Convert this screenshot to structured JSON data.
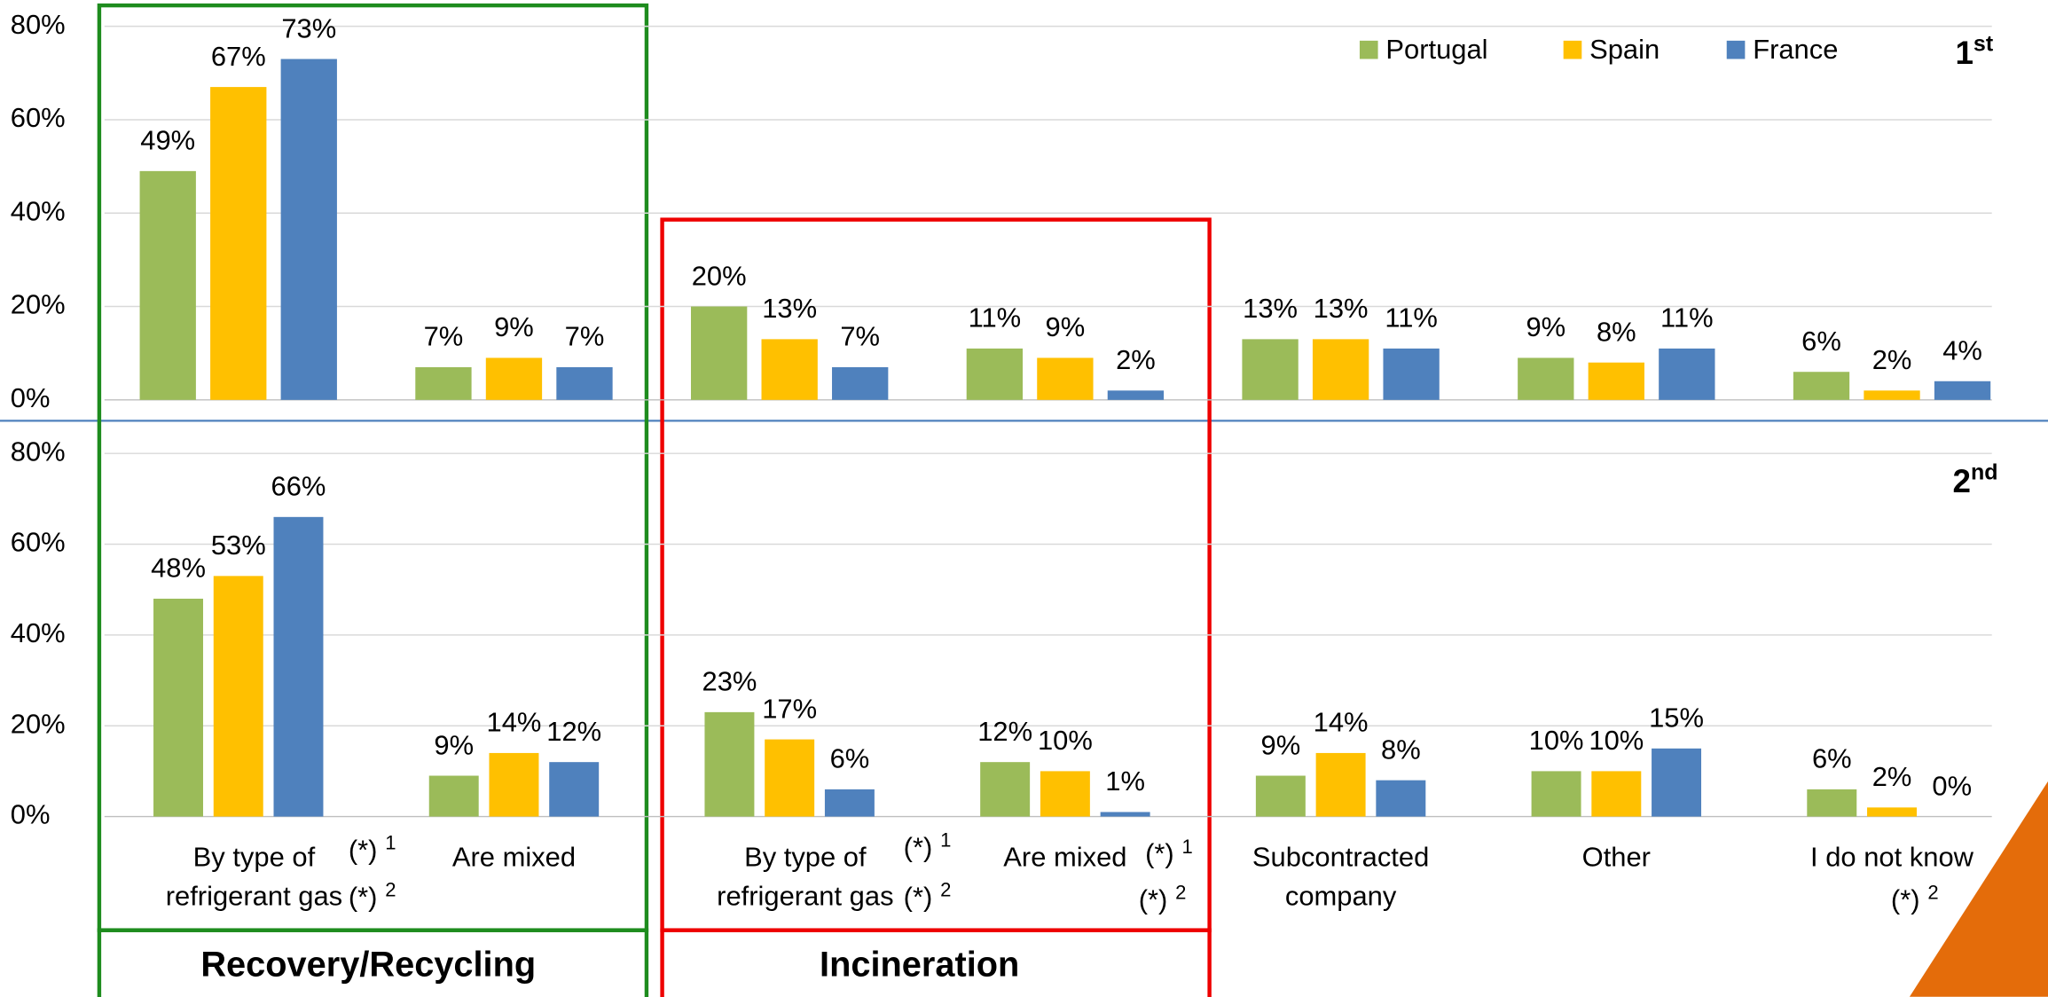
{
  "chart_data": [
    {
      "type": "bar",
      "panel_number": "1",
      "panel_suffix": "st",
      "ylim": [
        0,
        80
      ],
      "yticks": [
        {
          "value": 0,
          "label": "0%"
        },
        {
          "value": 20,
          "label": "20%"
        },
        {
          "value": 40,
          "label": "40%"
        },
        {
          "value": 60,
          "label": "60%"
        },
        {
          "value": 80,
          "label": "80%"
        }
      ],
      "grid": true,
      "legend": "top-right",
      "series": [
        {
          "name": "Portugal",
          "color": "#9bbb59",
          "values": [
            49,
            7,
            20,
            11,
            13,
            9,
            6
          ],
          "value_labels": [
            "49%",
            "7%",
            "20%",
            "11%",
            "13%",
            "9%",
            "6%"
          ]
        },
        {
          "name": "Spain",
          "color": "#ffc000",
          "values": [
            67,
            9,
            13,
            9,
            13,
            8,
            2
          ],
          "value_labels": [
            "67%",
            "9%",
            "13%",
            "9%",
            "13%",
            "8%",
            "2%"
          ]
        },
        {
          "name": "France",
          "color": "#4f81bd",
          "values": [
            73,
            7,
            7,
            2,
            11,
            11,
            4
          ],
          "value_labels": [
            "73%",
            "7%",
            "7%",
            "2%",
            "11%",
            "11%",
            "4%"
          ]
        }
      ]
    },
    {
      "type": "bar",
      "panel_number": "2",
      "panel_suffix": "nd",
      "categories": [
        "By type of refrigerant gas",
        "Are mixed",
        "By type of refrigerant gas",
        "Are mixed",
        "Subcontracted company",
        "Other",
        "I do not know"
      ],
      "ylim": [
        0,
        80
      ],
      "yticks": [
        {
          "value": 0,
          "label": "0%"
        },
        {
          "value": 20,
          "label": "20%"
        },
        {
          "value": 40,
          "label": "40%"
        },
        {
          "value": 60,
          "label": "60%"
        },
        {
          "value": 80,
          "label": "80%"
        }
      ],
      "grid": true,
      "series": [
        {
          "name": "Portugal",
          "color": "#9bbb59",
          "values": [
            48,
            9,
            23,
            12,
            9,
            10,
            6
          ],
          "value_labels": [
            "48%",
            "9%",
            "23%",
            "12%",
            "9%",
            "10%",
            "6%"
          ]
        },
        {
          "name": "Spain",
          "color": "#ffc000",
          "values": [
            53,
            14,
            17,
            10,
            14,
            10,
            2
          ],
          "value_labels": [
            "53%",
            "14%",
            "17%",
            "10%",
            "14%",
            "10%",
            "2%"
          ]
        },
        {
          "name": "France",
          "color": "#4f81bd",
          "values": [
            66,
            12,
            6,
            1,
            8,
            15,
            0
          ],
          "value_labels": [
            "66%",
            "12%",
            "6%",
            "1%",
            "8%",
            "15%",
            "0%"
          ]
        }
      ]
    }
  ],
  "groups": [
    {
      "label": "Recovery/Recycling"
    },
    {
      "label": "Incineration"
    }
  ],
  "notes": [
    {
      "mark": "(*)",
      "ref": "1"
    },
    {
      "mark": "(*)",
      "ref": "2"
    },
    {
      "mark": "(*)",
      "ref": "1"
    },
    {
      "mark": "(*)",
      "ref": "2"
    },
    {
      "mark": "(*)",
      "ref": "1"
    },
    {
      "mark": "(*)",
      "ref": "2"
    },
    {
      "mark": "(*)",
      "ref": "2"
    }
  ]
}
